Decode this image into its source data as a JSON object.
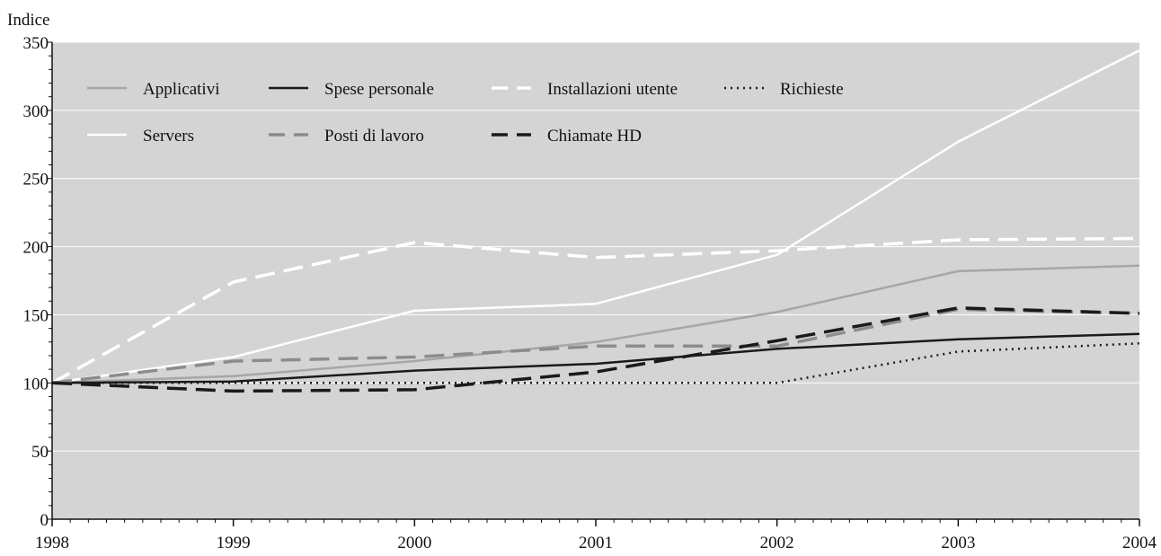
{
  "chart_data": {
    "type": "line",
    "title": "",
    "xlabel": "",
    "ylabel": "Indice",
    "x": [
      "1998",
      "1999",
      "2000",
      "2001",
      "2002",
      "2003",
      "2004"
    ],
    "ylim": [
      0,
      350
    ],
    "yticks": [
      "0",
      "50",
      "100",
      "150",
      "200",
      "250",
      "300",
      "350"
    ],
    "grid": true,
    "legend_position": "top-left",
    "background_color": "#d4d4d4",
    "series": [
      {
        "name": "Applicativi",
        "values": [
          100,
          105,
          116,
          130,
          152,
          182,
          186
        ],
        "color": "#a6a6a6",
        "dash": "solid"
      },
      {
        "name": "Spese personale",
        "values": [
          100,
          101,
          109,
          114,
          125,
          132,
          136
        ],
        "color": "#1a1a1a",
        "dash": "solid"
      },
      {
        "name": "Installazioni utente",
        "values": [
          100,
          174,
          203,
          192,
          197,
          205,
          206
        ],
        "color": "#ffffff",
        "dash": "dashed"
      },
      {
        "name": "Richieste",
        "values": [
          100,
          100,
          100,
          100,
          100,
          123,
          129
        ],
        "color": "#1a1a1a",
        "dash": "dotted"
      },
      {
        "name": "Servers",
        "values": [
          100,
          119,
          153,
          158,
          194,
          277,
          344
        ],
        "color": "#ffffff",
        "dash": "solid"
      },
      {
        "name": "Posti di lavoro",
        "values": [
          100,
          116,
          119,
          127,
          127,
          154,
          151
        ],
        "color": "#8c8c8c",
        "dash": "dashed"
      },
      {
        "name": "Chiamate HD",
        "values": [
          100,
          94,
          95,
          108,
          131,
          155,
          151
        ],
        "color": "#1a1a1a",
        "dash": "dashed"
      }
    ]
  }
}
